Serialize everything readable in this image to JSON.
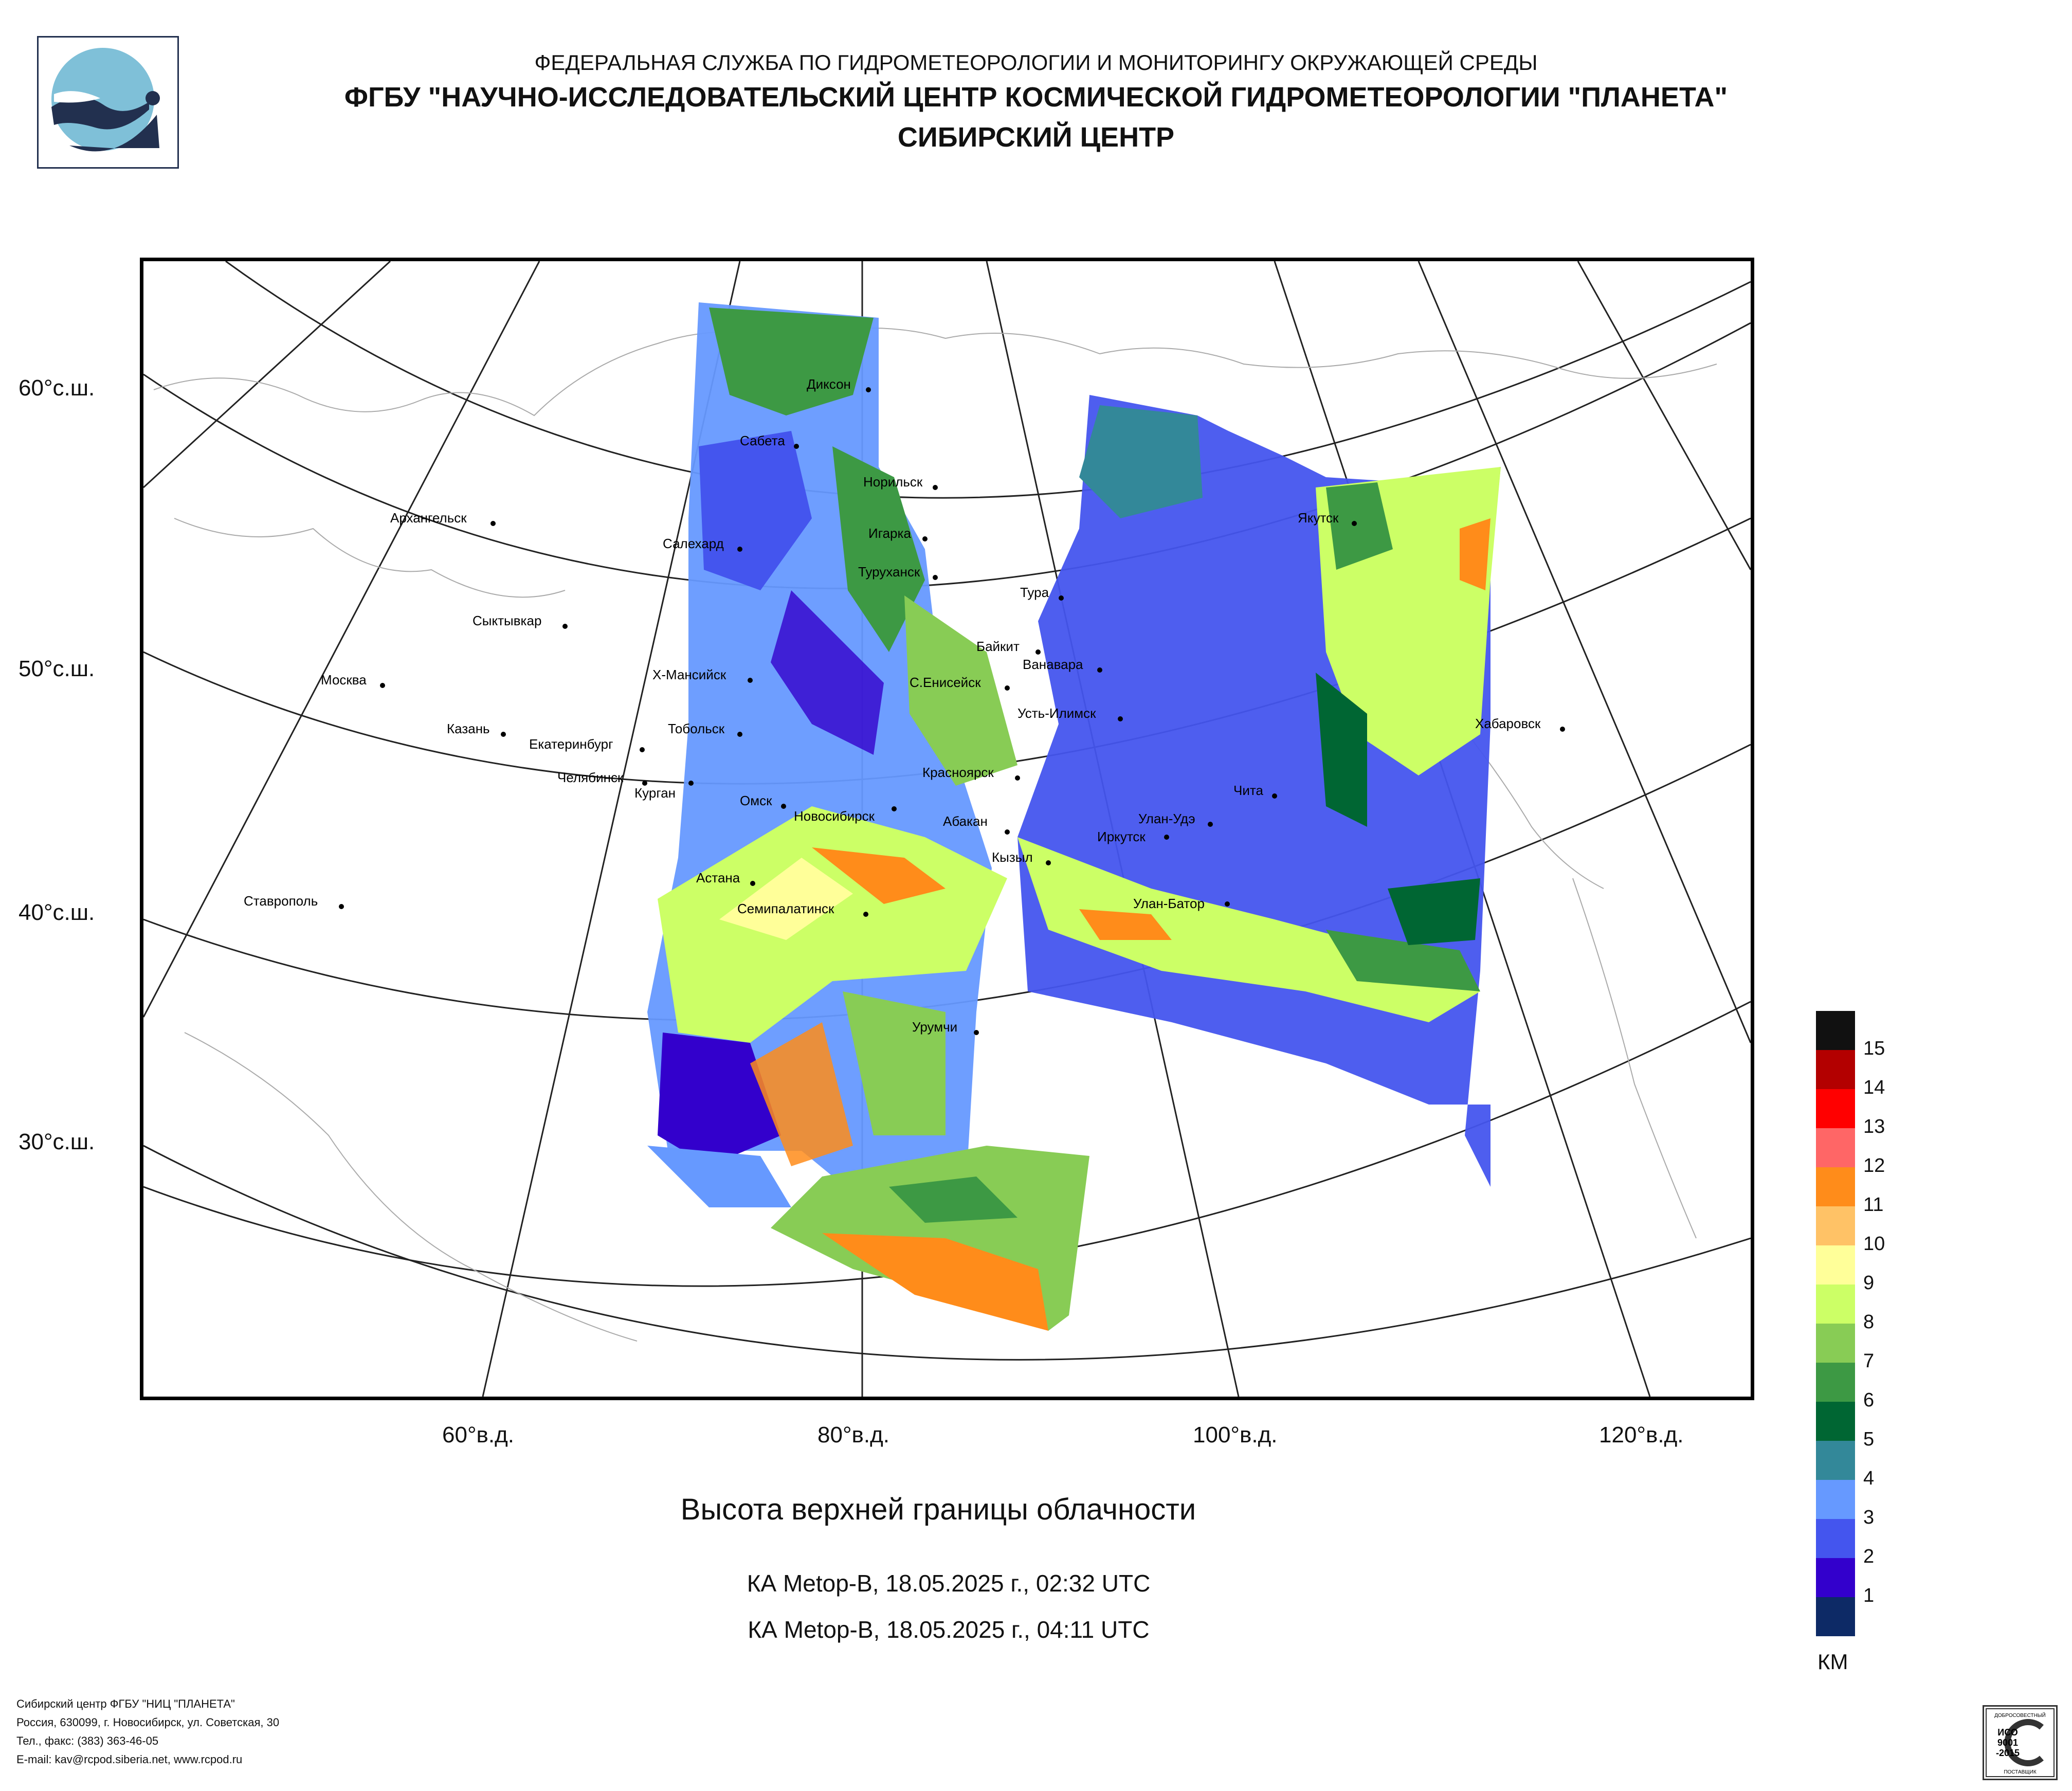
{
  "header": {
    "agency": "ФЕДЕРАЛЬНАЯ СЛУЖБА ПО ГИДРОМЕТЕОРОЛОГИИ И МОНИТОРИНГУ ОКРУЖАЮЩЕЙ СРЕДЫ",
    "org": "ФГБУ \"НАУЧНО-ИССЛЕДОВАТЕЛЬСКИЙ ЦЕНТР КОСМИЧЕСКОЙ ГИДРОМЕТЕОРОЛОГИИ \"ПЛАНЕТА\"",
    "center": "СИБИРСКИЙ ЦЕНТР"
  },
  "map": {
    "lat_labels": [
      "60°с.ш.",
      "50°с.ш.",
      "40°с.ш.",
      "30°с.ш."
    ],
    "lon_labels": [
      "60°в.д.",
      "80°в.д.",
      "100°в.д.",
      "120°в.д."
    ],
    "cities": [
      "Диксон",
      "Сабета",
      "Норильск",
      "Архангельск",
      "Игарка",
      "Салехард",
      "Туруханск",
      "Тура",
      "Якутск",
      "Сыктывкар",
      "Байкит",
      "Ванавара",
      "Х-Мансийск",
      "С.Енисейск",
      "Москва",
      "Усть-Илимск",
      "Хабаровск",
      "Казань",
      "Тобольск",
      "Екатеринбург",
      "Челябинск",
      "Курган",
      "Красноярск",
      "Чита",
      "Омск",
      "Новосибирск",
      "Абакан",
      "Улан-Удэ",
      "Иркутск",
      "Кызыл",
      "Астана",
      "Ставрополь",
      "Улан-Батор",
      "Семипалатинск",
      "Урумчи"
    ]
  },
  "title": "Высота верхней границы облачности",
  "passes": [
    "КА Metop-B, 18.05.2025 г., 02:32 UTC",
    "КА Metop-B, 18.05.2025 г., 04:11 UTC"
  ],
  "legend": {
    "unit": "КМ",
    "items": [
      {
        "label": "",
        "color": "#111111"
      },
      {
        "label": "15",
        "color": "#b30000"
      },
      {
        "label": "14",
        "color": "#ff0000"
      },
      {
        "label": "13",
        "color": "#ff6666"
      },
      {
        "label": "12",
        "color": "#ff8c1a"
      },
      {
        "label": "11",
        "color": "#ffc266"
      },
      {
        "label": "10",
        "color": "#ffff99"
      },
      {
        "label": "9",
        "color": "#ccff66"
      },
      {
        "label": "8",
        "color": "#88cc55"
      },
      {
        "label": "7",
        "color": "#3d9944"
      },
      {
        "label": "6",
        "color": "#006633"
      },
      {
        "label": "5",
        "color": "#338899"
      },
      {
        "label": "4",
        "color": "#6699ff"
      },
      {
        "label": "3",
        "color": "#4455ee"
      },
      {
        "label": "2",
        "color": "#3300cc"
      },
      {
        "label": "1",
        "color": "#0d2a66"
      }
    ]
  },
  "footer": [
    "Сибирский центр ФГБУ \"НИЦ \"ПЛАНЕТА\"",
    "Россия, 630099, г. Новосибирск, ул. Советская, 30",
    "Тел., факс: (383) 363-46-05",
    "E-mail: kav@rcpod.siberia.net, www.rcpod.ru"
  ],
  "iso": {
    "top": "ДОБРОСОВЕСТНЫЙ",
    "mid1": "ИСО",
    "mid2": "9001",
    "mid3": "-2015",
    "bottom": "ПОСТАВЩИК"
  }
}
